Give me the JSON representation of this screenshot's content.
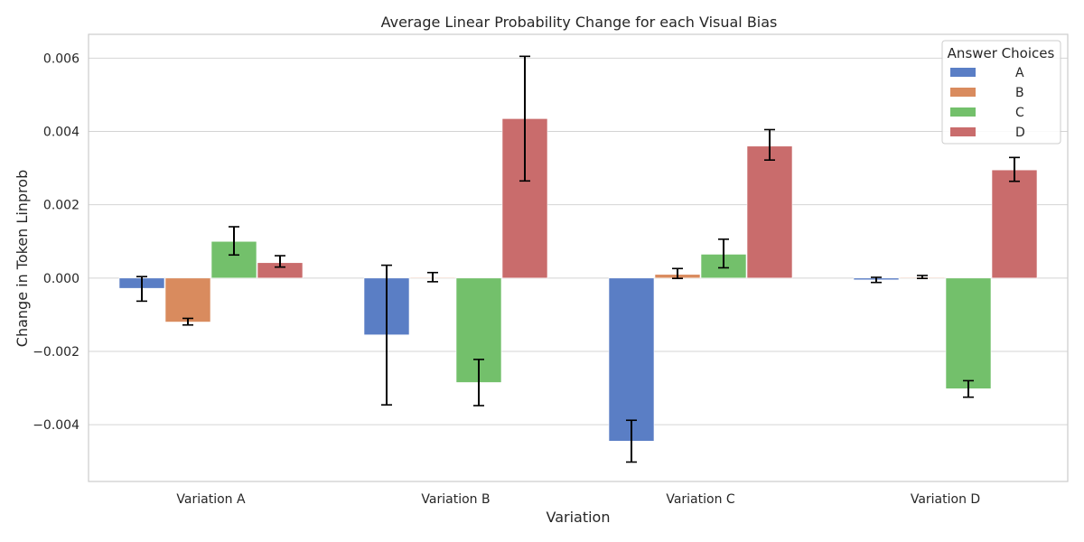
{
  "chart_data": {
    "type": "bar",
    "title": "Average Linear Probability Change for each Visual Bias",
    "xlabel": "Variation",
    "ylabel": "Change in Token Linprob",
    "categories": [
      "Variation A",
      "Variation B",
      "Variation C",
      "Variation D"
    ],
    "ylim": [
      -0.00555,
      0.00665
    ],
    "yticks": [
      -0.004,
      -0.002,
      0.0,
      0.002,
      0.004,
      0.006
    ],
    "ytick_labels": [
      "−0.004",
      "−0.002",
      "0.000",
      "0.002",
      "0.004",
      "0.006"
    ],
    "grid": true,
    "legend": {
      "title": "Answer Choices",
      "position": "top-right"
    },
    "series": [
      {
        "name": "A",
        "color": "#5a7ec5",
        "values": [
          -0.00028,
          -0.00155,
          -0.00445,
          -5e-05
        ],
        "err_low": [
          -0.00063,
          -0.00346,
          -0.00502,
          -0.00012
        ],
        "err_high": [
          4e-05,
          0.00035,
          -0.00388,
          2e-05
        ]
      },
      {
        "name": "B",
        "color": "#d98b5e",
        "values": [
          -0.0012,
          2e-05,
          0.0001,
          2e-05
        ],
        "err_low": [
          -0.00128,
          -0.0001,
          -1e-05,
          -1e-05
        ],
        "err_high": [
          -0.0011,
          0.00015,
          0.00026,
          7e-05
        ]
      },
      {
        "name": "C",
        "color": "#73c06b",
        "values": [
          0.001,
          -0.00285,
          0.00065,
          -0.00302
        ],
        "err_low": [
          0.00063,
          -0.00348,
          0.00028,
          -0.00325
        ],
        "err_high": [
          0.0014,
          -0.00222,
          0.00106,
          -0.0028
        ]
      },
      {
        "name": "D",
        "color": "#c96c6c",
        "values": [
          0.00042,
          0.00435,
          0.0036,
          0.00295
        ],
        "err_low": [
          0.0003,
          0.00265,
          0.00322,
          0.00264
        ],
        "err_high": [
          0.00061,
          0.00605,
          0.00405,
          0.00329
        ]
      }
    ]
  }
}
